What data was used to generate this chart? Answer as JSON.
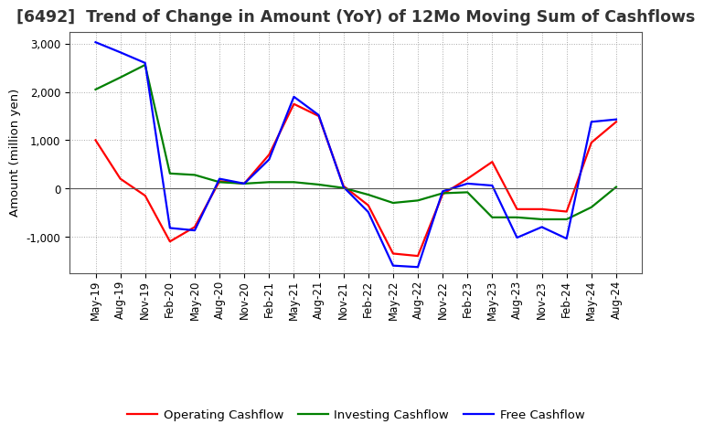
{
  "title": "[6492]  Trend of Change in Amount (YoY) of 12Mo Moving Sum of Cashflows",
  "ylabel": "Amount (million yen)",
  "x_labels": [
    "May-19",
    "Aug-19",
    "Nov-19",
    "Feb-20",
    "May-20",
    "Aug-20",
    "Nov-20",
    "Feb-21",
    "May-21",
    "Aug-21",
    "Nov-21",
    "Feb-22",
    "May-22",
    "Aug-22",
    "Nov-22",
    "Feb-23",
    "May-23",
    "Aug-23",
    "Nov-23",
    "Feb-24",
    "May-24",
    "Aug-24"
  ],
  "operating": [
    1000,
    200,
    -150,
    -1100,
    -800,
    150,
    100,
    700,
    1750,
    1500,
    50,
    -350,
    -1350,
    -1400,
    -120,
    200,
    550,
    -430,
    -430,
    -480,
    950,
    1380
  ],
  "investing": [
    2050,
    2300,
    2560,
    310,
    280,
    130,
    100,
    130,
    130,
    80,
    10,
    -130,
    -300,
    -250,
    -100,
    -80,
    -600,
    -600,
    -640,
    -640,
    -390,
    30
  ],
  "free": [
    3030,
    2820,
    2600,
    -820,
    -870,
    200,
    100,
    600,
    1900,
    1520,
    30,
    -490,
    -1600,
    -1630,
    -60,
    100,
    60,
    -1020,
    -800,
    -1040,
    1380,
    1430
  ],
  "operating_color": "#ff0000",
  "investing_color": "#008000",
  "free_color": "#0000ff",
  "ylim": [
    -1750,
    3250
  ],
  "yticks": [
    -1000,
    0,
    1000,
    2000,
    3000
  ],
  "background_color": "#ffffff",
  "grid_color": "#aaaaaa",
  "title_fontsize": 12.5,
  "axis_fontsize": 9.5,
  "tick_fontsize": 8.5,
  "legend_fontsize": 9.5
}
